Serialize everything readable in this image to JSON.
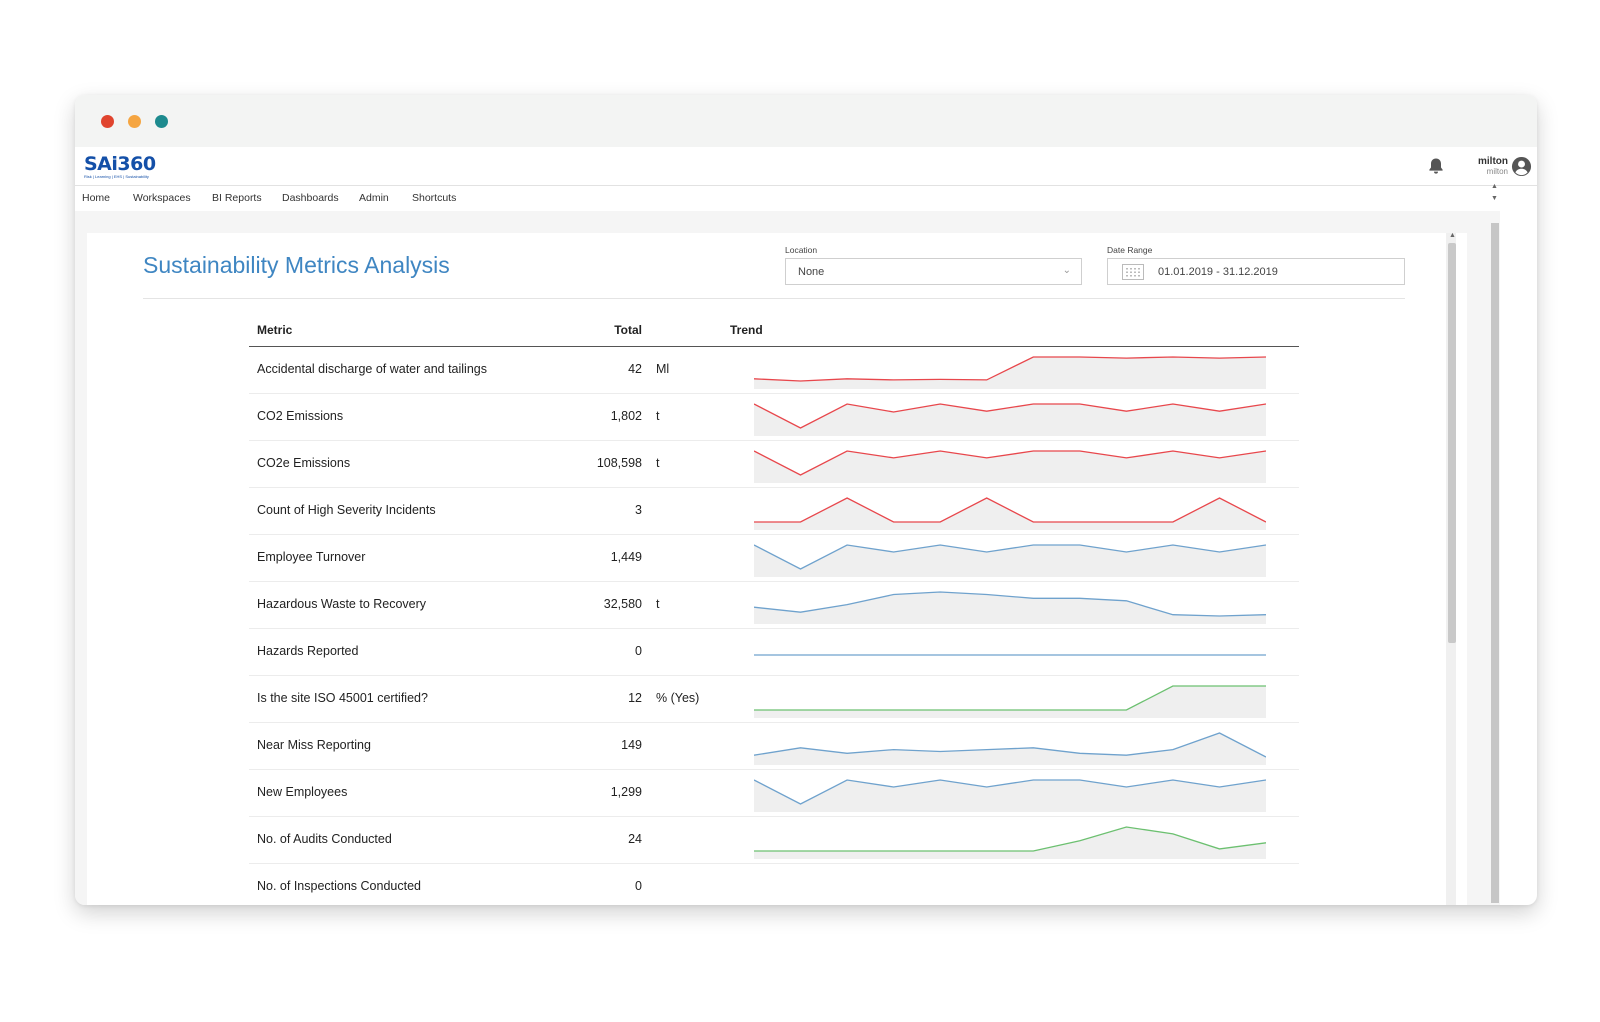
{
  "app": {
    "logo_text": "SAi360",
    "logo_tagline": "Risk | Learning | EHS | Sustainability"
  },
  "user": {
    "name": "milton",
    "sub": "milton"
  },
  "nav": {
    "items": [
      "Home",
      "Workspaces",
      "BI Reports",
      "Dashboards",
      "Admin",
      "Shortcuts"
    ]
  },
  "page": {
    "title": "Sustainability Metrics Analysis"
  },
  "filters": {
    "location": {
      "label": "Location",
      "value": "None"
    },
    "date_range": {
      "label": "Date Range",
      "value": "01.01.2019 - 31.12.2019"
    }
  },
  "table": {
    "headers": {
      "metric": "Metric",
      "total": "Total",
      "trend": "Trend"
    },
    "rows": [
      {
        "metric": "Accidental discharge of water and tailings",
        "total": "42",
        "unit": "Ml",
        "color": "#e8474c",
        "trend": [
          1.2,
          1.0,
          1.2,
          1.1,
          1.15,
          1.1,
          3.2,
          3.2,
          3.1,
          3.2,
          3.1,
          3.2
        ]
      },
      {
        "metric": "CO2 Emissions",
        "total": "1,802",
        "unit": "t",
        "color": "#e8474c",
        "trend": [
          150,
          90,
          150,
          130,
          150,
          132,
          150,
          150,
          132,
          150,
          132,
          150
        ]
      },
      {
        "metric": "CO2e Emissions",
        "total": "108,598",
        "unit": "t",
        "color": "#e8474c",
        "trend": [
          9000,
          5500,
          9000,
          8000,
          9000,
          8000,
          9000,
          9000,
          8000,
          9000,
          8000,
          9000
        ]
      },
      {
        "metric": "Count of High Severity Incidents",
        "total": "3",
        "unit": "",
        "color": "#e8474c",
        "trend": [
          0,
          0,
          1,
          0,
          0,
          1,
          0,
          0,
          0,
          0,
          1,
          0
        ]
      },
      {
        "metric": "Employee Turnover",
        "total": "1,449",
        "unit": "",
        "color": "#6fa2cd",
        "trend": [
          120,
          72,
          120,
          106,
          120,
          106,
          120,
          120,
          106,
          120,
          106,
          120
        ]
      },
      {
        "metric": "Hazardous Waste to Recovery",
        "total": "32,580",
        "unit": "t",
        "color": "#6fa2cd",
        "trend": [
          2600,
          2400,
          2700,
          3100,
          3200,
          3100,
          2950,
          2950,
          2850,
          2300,
          2250,
          2300
        ]
      },
      {
        "metric": "Hazards Reported",
        "total": "0",
        "unit": "",
        "color": "#6fa2cd",
        "trend": [
          0,
          0,
          0,
          0,
          0,
          0,
          0,
          0,
          0,
          0,
          0,
          0
        ]
      },
      {
        "metric": "Is the site ISO 45001 certified?",
        "total": "12",
        "unit": "% (Yes)",
        "color": "#6cc070",
        "trend": [
          0,
          0,
          0,
          0,
          0,
          0,
          0,
          0,
          0,
          1,
          1,
          1
        ]
      },
      {
        "metric": "Near Miss Reporting",
        "total": "149",
        "unit": "",
        "color": "#6fa2cd",
        "trend": [
          10,
          14,
          11,
          13,
          12,
          13,
          14,
          11,
          10,
          13,
          22,
          9
        ]
      },
      {
        "metric": "New Employees",
        "total": "1,299",
        "unit": "",
        "color": "#6fa2cd",
        "trend": [
          107,
          66,
          107,
          95,
          107,
          95,
          107,
          107,
          95,
          107,
          95,
          107
        ]
      },
      {
        "metric": "No. of Audits Conducted",
        "total": "24",
        "unit": "",
        "color": "#6cc070",
        "trend": [
          0,
          0,
          0,
          0,
          0,
          0,
          0,
          1.5,
          3.5,
          2.5,
          0.3,
          1.2
        ]
      },
      {
        "metric": "No. of Inspections Conducted",
        "total": "0",
        "unit": "",
        "color": "#6fa2cd",
        "trend": []
      }
    ]
  }
}
